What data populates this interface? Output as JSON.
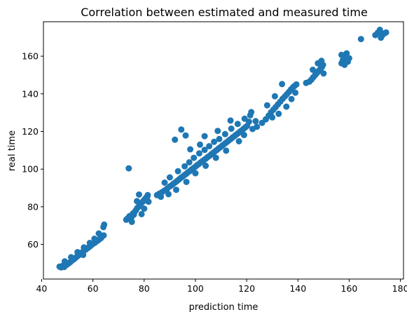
{
  "chart_data": {
    "type": "scatter",
    "title": "Correlation between estimated and measured time",
    "xlabel": "prediction time",
    "ylabel": "real time",
    "xlim": [
      40.7,
      181.2
    ],
    "ylim": [
      41.6,
      178.3
    ],
    "xticks": [
      40,
      60,
      80,
      100,
      120,
      140,
      160,
      180
    ],
    "yticks": [
      60,
      80,
      100,
      120,
      140,
      160
    ],
    "grid": false,
    "marker_color": "#1f77b4",
    "series": [
      {
        "points": [
          [
            47.0,
            48.2
          ],
          [
            47.6,
            47.8
          ],
          [
            48.2,
            48.6
          ],
          [
            48.8,
            48.0
          ],
          [
            49.4,
            48.9
          ],
          [
            50.0,
            49.4
          ],
          [
            50.6,
            50.0
          ],
          [
            51.2,
            50.6
          ],
          [
            51.8,
            51.4
          ],
          [
            52.4,
            51.9
          ],
          [
            53.0,
            52.6
          ],
          [
            53.6,
            53.3
          ],
          [
            54.2,
            54.0
          ],
          [
            54.8,
            54.6
          ],
          [
            55.4,
            55.3
          ],
          [
            56.0,
            56.0
          ],
          [
            56.6,
            56.8
          ],
          [
            57.2,
            57.3
          ],
          [
            57.8,
            57.9
          ],
          [
            58.4,
            58.5
          ],
          [
            59.0,
            59.1
          ],
          [
            59.6,
            59.8
          ],
          [
            60.2,
            60.4
          ],
          [
            60.8,
            60.9
          ],
          [
            61.4,
            61.6
          ],
          [
            62.0,
            62.1
          ],
          [
            62.6,
            62.8
          ],
          [
            63.2,
            63.4
          ],
          [
            63.6,
            64.2
          ],
          [
            64.2,
            64.8
          ],
          [
            49.0,
            51.0
          ],
          [
            51.5,
            53.2
          ],
          [
            54.0,
            55.9
          ],
          [
            56.5,
            58.4
          ],
          [
            58.8,
            60.8
          ],
          [
            60.6,
            63.0
          ],
          [
            62.3,
            65.8
          ],
          [
            64.1,
            69.2
          ],
          [
            64.4,
            70.5
          ],
          [
            56.2,
            54.4
          ],
          [
            73.0,
            73.1
          ],
          [
            73.6,
            73.9
          ],
          [
            74.3,
            75.0
          ],
          [
            75.0,
            74.2
          ],
          [
            75.6,
            76.4
          ],
          [
            76.2,
            77.1
          ],
          [
            76.8,
            78.2
          ],
          [
            77.3,
            79.3
          ],
          [
            77.9,
            80.1
          ],
          [
            78.4,
            81.0
          ],
          [
            78.9,
            81.9
          ],
          [
            79.4,
            82.6
          ],
          [
            79.9,
            83.4
          ],
          [
            80.3,
            84.1
          ],
          [
            80.8,
            84.9
          ],
          [
            81.2,
            85.3
          ],
          [
            81.7,
            82.7
          ],
          [
            78.0,
            86.5
          ],
          [
            79.0,
            76.1
          ],
          [
            75.2,
            72.0
          ],
          [
            77.2,
            83.0
          ],
          [
            80.0,
            79.0
          ],
          [
            76.0,
            75.8
          ],
          [
            81.4,
            86.2
          ],
          [
            74.0,
            100.4
          ],
          [
            85.0,
            86.2
          ],
          [
            86.0,
            87.0
          ],
          [
            87.0,
            87.8
          ],
          [
            88.0,
            88.7
          ],
          [
            89.0,
            89.7
          ],
          [
            90.0,
            90.8
          ],
          [
            90.8,
            91.5
          ],
          [
            91.5,
            92.3
          ],
          [
            92.2,
            93.0
          ],
          [
            92.9,
            93.8
          ],
          [
            93.6,
            94.5
          ],
          [
            94.3,
            95.3
          ],
          [
            95.0,
            96.0
          ],
          [
            95.7,
            96.8
          ],
          [
            96.4,
            97.5
          ],
          [
            97.1,
            98.3
          ],
          [
            97.8,
            99.0
          ],
          [
            98.5,
            99.8
          ],
          [
            99.2,
            100.5
          ],
          [
            99.9,
            101.2
          ],
          [
            100.6,
            102.0
          ],
          [
            101.3,
            102.7
          ],
          [
            102.0,
            103.5
          ],
          [
            102.7,
            104.2
          ],
          [
            103.4,
            104.9
          ],
          [
            104.1,
            105.6
          ],
          [
            104.8,
            106.4
          ],
          [
            105.5,
            107.1
          ],
          [
            106.2,
            107.9
          ],
          [
            106.9,
            108.6
          ],
          [
            107.6,
            109.4
          ],
          [
            108.3,
            110.1
          ],
          [
            109.0,
            110.9
          ],
          [
            109.7,
            111.6
          ],
          [
            110.4,
            112.4
          ],
          [
            111.1,
            113.1
          ],
          [
            111.8,
            113.9
          ],
          [
            112.5,
            114.6
          ],
          [
            113.2,
            115.4
          ],
          [
            113.9,
            116.1
          ],
          [
            114.6,
            116.9
          ],
          [
            115.3,
            117.6
          ],
          [
            116.0,
            118.4
          ],
          [
            116.7,
            119.1
          ],
          [
            117.4,
            119.9
          ],
          [
            118.1,
            120.6
          ],
          [
            118.8,
            121.4
          ],
          [
            119.5,
            122.2
          ],
          [
            120.2,
            123.0
          ],
          [
            120.9,
            125.2
          ],
          [
            88.0,
            92.8
          ],
          [
            90.0,
            95.6
          ],
          [
            93.2,
            98.9
          ],
          [
            95.8,
            101.5
          ],
          [
            97.6,
            103.6
          ],
          [
            99.4,
            106.0
          ],
          [
            101.5,
            108.4
          ],
          [
            103.6,
            110.2
          ],
          [
            105.4,
            112.2
          ],
          [
            107.3,
            114.5
          ],
          [
            109.3,
            116.0
          ],
          [
            111.6,
            118.6
          ],
          [
            114.0,
            121.5
          ],
          [
            116.5,
            124.0
          ],
          [
            119.2,
            126.8
          ],
          [
            121.4,
            128.6
          ],
          [
            92.5,
            89.0
          ],
          [
            96.5,
            93.2
          ],
          [
            100.0,
            97.8
          ],
          [
            104.0,
            101.8
          ],
          [
            108.0,
            106.0
          ],
          [
            112.0,
            109.8
          ],
          [
            117.0,
            114.8
          ],
          [
            98.0,
            110.5
          ],
          [
            96.2,
            117.9
          ],
          [
            89.5,
            86.7
          ],
          [
            86.5,
            85.3
          ],
          [
            92.0,
            115.6
          ],
          [
            94.5,
            121.0
          ],
          [
            101.8,
            113.0
          ],
          [
            103.6,
            117.5
          ],
          [
            108.7,
            120.3
          ],
          [
            113.7,
            125.8
          ],
          [
            119.0,
            118.1
          ],
          [
            122.3,
            121.3
          ],
          [
            123.5,
            125.5
          ],
          [
            121.8,
            130.3
          ],
          [
            124.0,
            122.5
          ],
          [
            126.0,
            124.6
          ],
          [
            127.5,
            126.5
          ],
          [
            128.6,
            128.4
          ],
          [
            129.5,
            130.2
          ],
          [
            130.4,
            131.6
          ],
          [
            131.3,
            132.9
          ],
          [
            132.2,
            134.4
          ],
          [
            133.1,
            135.8
          ],
          [
            134.0,
            137.3
          ],
          [
            134.9,
            138.6
          ],
          [
            135.7,
            139.8
          ],
          [
            136.5,
            141.0
          ],
          [
            137.3,
            142.3
          ],
          [
            138.0,
            143.4
          ],
          [
            138.7,
            144.2
          ],
          [
            139.4,
            145.0
          ],
          [
            130.0,
            127.5
          ],
          [
            132.5,
            129.4
          ],
          [
            135.5,
            133.2
          ],
          [
            137.5,
            137.2
          ],
          [
            139.0,
            140.6
          ],
          [
            133.8,
            145.2
          ],
          [
            131.0,
            138.7
          ],
          [
            128.0,
            133.9
          ],
          [
            144.5,
            146.5
          ],
          [
            145.3,
            147.6
          ],
          [
            146.0,
            148.8
          ],
          [
            146.7,
            149.9
          ],
          [
            147.4,
            151.0
          ],
          [
            148.1,
            152.2
          ],
          [
            148.8,
            153.3
          ],
          [
            149.4,
            154.3
          ],
          [
            149.8,
            155.4
          ],
          [
            150.0,
            150.8
          ],
          [
            145.8,
            152.8
          ],
          [
            147.8,
            156.2
          ],
          [
            149.2,
            157.5
          ],
          [
            143.2,
            145.8
          ],
          [
            157.0,
            156.2
          ],
          [
            157.5,
            157.8
          ],
          [
            158.0,
            159.3
          ],
          [
            158.5,
            160.2
          ],
          [
            159.0,
            161.5
          ],
          [
            159.5,
            157.1
          ],
          [
            160.0,
            158.9
          ],
          [
            158.2,
            155.4
          ],
          [
            157.0,
            160.7
          ],
          [
            164.6,
            169.1
          ],
          [
            170.2,
            171.2
          ],
          [
            171.2,
            172.5
          ],
          [
            172.0,
            174.0
          ],
          [
            172.8,
            170.9
          ],
          [
            173.6,
            172.0
          ],
          [
            174.4,
            172.6
          ],
          [
            172.4,
            169.8
          ]
        ]
      }
    ]
  }
}
